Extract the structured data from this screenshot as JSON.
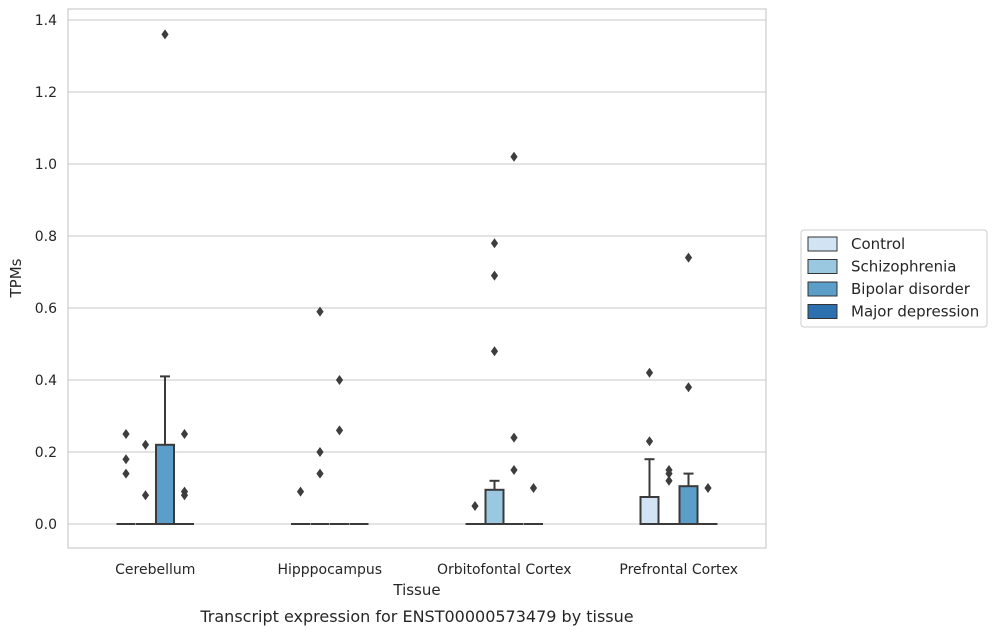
{
  "chart_data": {
    "type": "box",
    "title": "Transcript expression for ENST00000573479 by tissue",
    "xlabel": "Tissue",
    "ylabel": "TPMs",
    "ylim": [
      -0.065,
      1.435
    ],
    "yticks": [
      "0.0",
      "0.2",
      "0.4",
      "0.6",
      "0.8",
      "1.0",
      "1.2",
      "1.4"
    ],
    "ytick_values": [
      0.0,
      0.2,
      0.4,
      0.6,
      0.8,
      1.0,
      1.2,
      1.4
    ],
    "grid": "horizontal",
    "legend_placement": "right",
    "categories": [
      "Cerebellum",
      "Hipppocampus",
      "Orbitofontal Cortex",
      "Prefrontal Cortex"
    ],
    "series": [
      {
        "name": "Control",
        "color": "#d2e3f3",
        "boxes": [
          {
            "q1": 0,
            "median": 0,
            "q3": 0,
            "whisker_low": 0,
            "whisker_high": 0,
            "outliers": [
              0.25,
              0.18,
              0.14
            ]
          },
          {
            "q1": 0,
            "median": 0,
            "q3": 0,
            "whisker_low": 0,
            "whisker_high": 0,
            "outliers": [
              0.09
            ]
          },
          {
            "q1": 0,
            "median": 0,
            "q3": 0,
            "whisker_low": 0,
            "whisker_high": 0,
            "outliers": [
              0.05
            ]
          },
          {
            "q1": 0,
            "median": 0,
            "q3": 0.075,
            "whisker_low": 0,
            "whisker_high": 0.18,
            "outliers": [
              0.42,
              0.23
            ]
          }
        ]
      },
      {
        "name": "Schizophrenia",
        "color": "#9ac8e0",
        "boxes": [
          {
            "q1": 0,
            "median": 0,
            "q3": 0,
            "whisker_low": 0,
            "whisker_high": 0,
            "outliers": [
              0.22,
              0.08
            ]
          },
          {
            "q1": 0,
            "median": 0,
            "q3": 0,
            "whisker_low": 0,
            "whisker_high": 0,
            "outliers": [
              0.59,
              0.2,
              0.14
            ]
          },
          {
            "q1": 0,
            "median": 0,
            "q3": 0.095,
            "whisker_low": 0,
            "whisker_high": 0.12,
            "outliers": [
              0.78,
              0.69,
              0.48
            ]
          },
          {
            "q1": 0,
            "median": 0,
            "q3": 0,
            "whisker_low": 0,
            "whisker_high": 0,
            "outliers": [
              0.15,
              0.14,
              0.12
            ]
          }
        ]
      },
      {
        "name": "Bipolar disorder",
        "color": "#5a9ec9",
        "boxes": [
          {
            "q1": 0,
            "median": 0,
            "q3": 0.22,
            "whisker_low": 0,
            "whisker_high": 0.41,
            "outliers": [
              1.36
            ]
          },
          {
            "q1": 0,
            "median": 0,
            "q3": 0,
            "whisker_low": 0,
            "whisker_high": 0,
            "outliers": [
              0.4,
              0.26
            ]
          },
          {
            "q1": 0,
            "median": 0,
            "q3": 0,
            "whisker_low": 0,
            "whisker_high": 0,
            "outliers": [
              1.02,
              0.24,
              0.15
            ]
          },
          {
            "q1": 0,
            "median": 0,
            "q3": 0.105,
            "whisker_low": 0,
            "whisker_high": 0.14,
            "outliers": [
              0.74,
              0.38
            ]
          }
        ]
      },
      {
        "name": "Major depression",
        "color": "#2c70b0",
        "boxes": [
          {
            "q1": 0,
            "median": 0,
            "q3": 0,
            "whisker_low": 0,
            "whisker_high": 0,
            "outliers": [
              0.25,
              0.09,
              0.08
            ]
          },
          {
            "q1": 0,
            "median": 0,
            "q3": 0,
            "whisker_low": 0,
            "whisker_high": 0,
            "outliers": []
          },
          {
            "q1": 0,
            "median": 0,
            "q3": 0,
            "whisker_low": 0,
            "whisker_high": 0,
            "outliers": [
              0.1
            ]
          },
          {
            "q1": 0,
            "median": 0,
            "q3": 0,
            "whisker_low": 0,
            "whisker_high": 0,
            "outliers": [
              0.1
            ]
          }
        ]
      }
    ]
  }
}
